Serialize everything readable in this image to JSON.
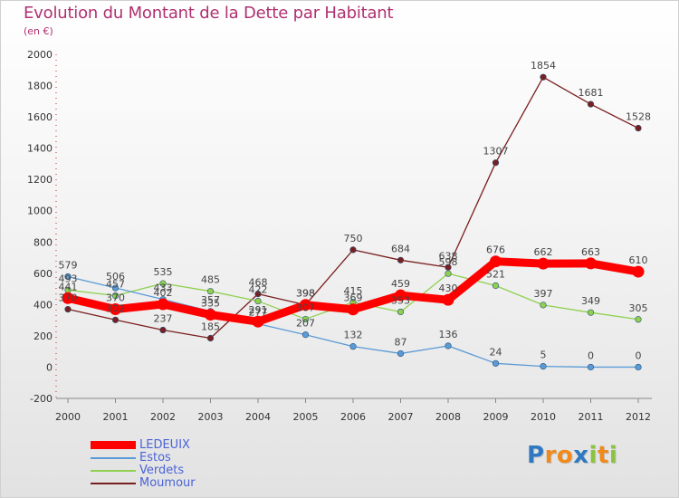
{
  "chart_data": {
    "type": "line",
    "title": "Evolution du Montant de la Dette par Habitant",
    "subtitle": "(en €)",
    "x": [
      "2000",
      "2001",
      "2002",
      "2003",
      "2004",
      "2005",
      "2006",
      "2007",
      "2008",
      "2009",
      "2010",
      "2011",
      "2012"
    ],
    "ylim": [
      -200,
      2000
    ],
    "yticks": [
      "-200",
      "0",
      "200",
      "400",
      "600",
      "800",
      "1000",
      "1200",
      "1400",
      "1600",
      "1800",
      "2000"
    ],
    "grid": false,
    "legend": "bottom-left",
    "series": [
      {
        "name": "LEDEUIX",
        "color": "#ff0000",
        "values": [
          441,
          370,
          402,
          335,
          291,
          398,
          369,
          459,
          430,
          676,
          662,
          663,
          610
        ],
        "labels": [
          "441",
          "370",
          "402",
          "335",
          "291",
          "398",
          "369",
          "459",
          "430",
          "676",
          "662",
          "663",
          "610"
        ]
      },
      {
        "name": "Estos",
        "color": "#5b9bd5",
        "values": [
          579,
          506,
          433,
          357,
          277,
          207,
          132,
          87,
          136,
          24,
          5,
          0,
          0
        ],
        "labels": [
          "579",
          "506",
          "433",
          "357",
          "277",
          "207",
          "132",
          "87",
          "136",
          "24",
          "5",
          "0",
          "0"
        ]
      },
      {
        "name": "Verdets",
        "color": "#8fd14f",
        "values": [
          493,
          457,
          535,
          485,
          422,
          307,
          415,
          353,
          598,
          521,
          397,
          349,
          305
        ],
        "labels": [
          "493",
          "457",
          "535",
          "485",
          "422",
          "307",
          "415",
          "353",
          "598",
          "521",
          "397",
          "349",
          "305"
        ]
      },
      {
        "name": "Moumour",
        "color": "#7a1f1f",
        "values": [
          370,
          302,
          237,
          185,
          468,
          398,
          750,
          684,
          638,
          1307,
          1854,
          1681,
          1528
        ],
        "labels": [
          "370",
          "302",
          "237",
          "185",
          "468",
          "398",
          "750",
          "684",
          "638",
          "1307",
          "1854",
          "1681",
          "1528"
        ]
      }
    ]
  },
  "legend": {
    "items": [
      {
        "label": "LEDEUIX"
      },
      {
        "label": "Estos"
      },
      {
        "label": "Verdets"
      },
      {
        "label": "Moumour"
      }
    ]
  },
  "logo": {
    "text": "Proxiti",
    "letters": [
      {
        "ch": "P",
        "color": "#2f79c2"
      },
      {
        "ch": "r",
        "color": "#f08a1c"
      },
      {
        "ch": "o",
        "color": "#f08a1c"
      },
      {
        "ch": "x",
        "color": "#2f79c2"
      },
      {
        "ch": "i",
        "color": "#8cc43f"
      },
      {
        "ch": "t",
        "color": "#f08a1c"
      },
      {
        "ch": "i",
        "color": "#8cc43f"
      }
    ]
  }
}
